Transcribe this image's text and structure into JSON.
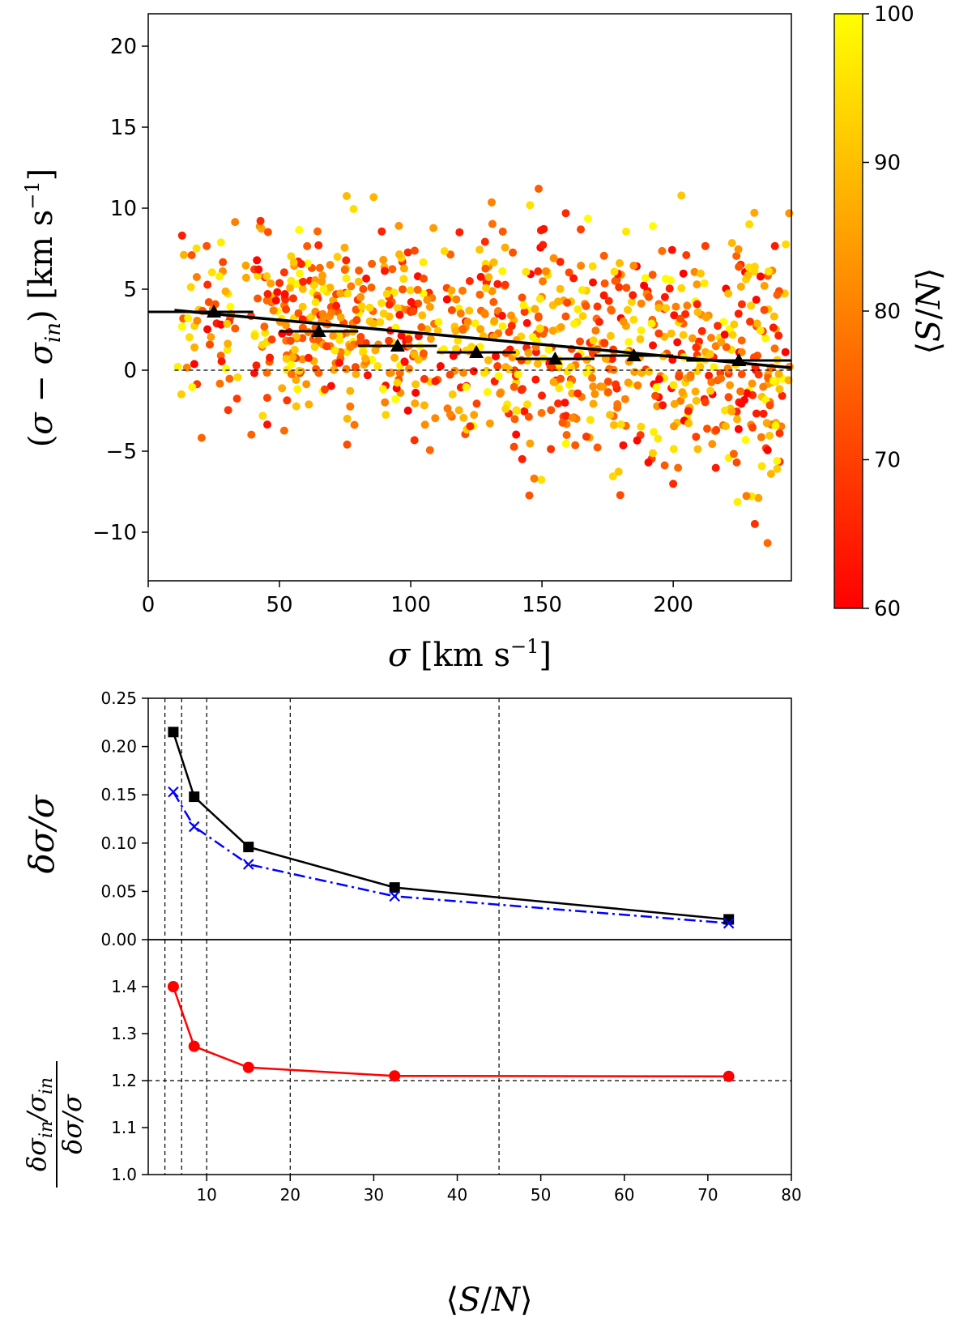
{
  "chart_data": [
    {
      "type": "scatter",
      "xlabel": "σ [km s⁻¹]",
      "ylabel": "(σ − σᵢₙ) [km s⁻¹]",
      "xlim": [
        0,
        245
      ],
      "ylim": [
        -13,
        22
      ],
      "xticks": [
        0,
        50,
        100,
        150,
        200
      ],
      "yticks": [
        -10,
        -5,
        0,
        5,
        10,
        15,
        20
      ],
      "grid": false,
      "colorbar": {
        "label": "⟨S/N⟩",
        "range": [
          60,
          100
        ],
        "ticks": [
          60,
          70,
          80,
          90,
          100
        ],
        "colormap": [
          "#ff0000",
          "#ff8000",
          "#ffff00"
        ]
      },
      "reference_line": {
        "y": 0,
        "x_range": [
          10,
          245
        ],
        "style": "dashed"
      },
      "fit_line": {
        "x": [
          10,
          245
        ],
        "y": [
          3.7,
          0.15
        ]
      },
      "binned_means": {
        "x": [
          25,
          65,
          95,
          125,
          155,
          185,
          225
        ],
        "y": [
          3.6,
          2.4,
          1.5,
          1.1,
          0.7,
          0.9,
          0.6
        ],
        "x_halfwidth": [
          15,
          15,
          15,
          15,
          15,
          15,
          20
        ]
      },
      "scatter_points": {
        "count": 1000,
        "x_range": [
          10,
          245
        ],
        "y_spread_range": [
          -12,
          16
        ],
        "color_value_range": [
          60,
          100
        ]
      }
    },
    {
      "type": "line",
      "ylabel": "δσ/σ",
      "xlim": [
        3,
        80
      ],
      "ylim": [
        0,
        0.25
      ],
      "yticks": [
        0.0,
        0.05,
        0.1,
        0.15,
        0.2,
        0.25
      ],
      "ytick_labels": [
        "0.00",
        "0.05",
        "0.10",
        "0.15",
        "0.20",
        "0.25"
      ],
      "grid": false,
      "vertical_reference_lines": [
        5,
        7,
        10,
        20,
        45
      ],
      "series": [
        {
          "x": [
            6,
            8.5,
            15,
            32.5,
            72.5
          ],
          "values": [
            0.215,
            0.148,
            0.096,
            0.054,
            0.021
          ],
          "color": "#000000",
          "marker": "square",
          "linestyle": "solid"
        },
        {
          "x": [
            6,
            8.5,
            15,
            32.5,
            72.5
          ],
          "values": [
            0.153,
            0.117,
            0.078,
            0.045,
            0.017
          ],
          "color": "#0000ff",
          "marker": "x",
          "linestyle": "dashdot"
        }
      ]
    },
    {
      "type": "line",
      "xlabel": "⟨S/N⟩",
      "ylabel_numerator": "δσᵢₙ/σᵢₙ",
      "ylabel_denominator": "δσ/σ",
      "xlim": [
        3,
        80
      ],
      "ylim": [
        1.0,
        1.5
      ],
      "xticks": [
        10,
        20,
        30,
        40,
        50,
        60,
        70,
        80
      ],
      "yticks": [
        1.0,
        1.1,
        1.2,
        1.3,
        1.4
      ],
      "ytick_labels": [
        "1.0",
        "1.1",
        "1.2",
        "1.3",
        "1.4"
      ],
      "grid": false,
      "vertical_reference_lines": [
        5,
        7,
        10,
        20,
        45
      ],
      "reference_line": {
        "y": 1.2,
        "style": "dashed"
      },
      "series": [
        {
          "x": [
            6,
            8.5,
            15,
            32.5,
            72.5
          ],
          "values": [
            1.4,
            1.273,
            1.228,
            1.21,
            1.209
          ],
          "color": "#ff0000",
          "marker": "circle",
          "linestyle": "solid"
        }
      ]
    }
  ]
}
